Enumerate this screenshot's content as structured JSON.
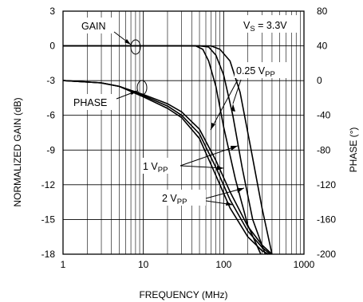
{
  "chart_data": {
    "type": "line",
    "x_axis": {
      "label": "FREQUENCY (MHz)",
      "scale": "log",
      "range": [
        1,
        1000
      ],
      "tick_labels": [
        "1",
        "10",
        "100",
        "1000"
      ]
    },
    "y_left_axis": {
      "label": "NORMALIZED GAIN (dB)",
      "range": [
        -18,
        3
      ],
      "tick_labels": [
        "3",
        "0",
        "-3",
        "-6",
        "-9",
        "-12",
        "-15",
        "-18"
      ]
    },
    "y_right_axis": {
      "label": "PHASE (°)",
      "range": [
        -200,
        80
      ],
      "tick_labels": [
        "80",
        "40",
        "0",
        "-40",
        "-80",
        "-120",
        "-160",
        "-200"
      ]
    },
    "grid": true,
    "annotations": {
      "condition_main": "V",
      "condition_sub": "S",
      "condition_rest": " = 3.3V",
      "gain_label": "GAIN",
      "phase_label": "PHASE",
      "vpp_025_main": "0.25 V",
      "vpp_1_main": "1 V",
      "vpp_2_main": "2 V",
      "vpp_sub": "PP"
    },
    "series": [
      {
        "axis": "left",
        "group": "gain",
        "amplitude": "0.25 VPP",
        "x": [
          1,
          10,
          50,
          70,
          90,
          120,
          160,
          220,
          300,
          400
        ],
        "y": [
          0,
          0,
          0,
          0,
          -0.3,
          -1.3,
          -4,
          -9,
          -14,
          -18
        ]
      },
      {
        "axis": "left",
        "group": "gain",
        "amplitude": "1 VPP",
        "x": [
          1,
          10,
          50,
          65,
          80,
          100,
          130,
          170,
          230,
          330
        ],
        "y": [
          0,
          0,
          0,
          -0.1,
          -0.8,
          -2.5,
          -6,
          -10.5,
          -15,
          -18
        ]
      },
      {
        "axis": "left",
        "group": "gain",
        "amplitude": "2 VPP",
        "x": [
          1,
          10,
          45,
          55,
          65,
          80,
          100,
          140,
          200,
          290
        ],
        "y": [
          0,
          0,
          0,
          -0.3,
          -1.3,
          -3.5,
          -7,
          -11.5,
          -15.5,
          -18
        ]
      },
      {
        "axis": "right",
        "group": "phase",
        "amplitude": "1 VPP",
        "x": [
          1,
          3,
          5,
          10,
          20,
          30,
          50,
          80,
          120,
          200,
          300,
          380
        ],
        "y": [
          -3,
          -3.2,
          -3.5,
          -4.3,
          -5.2,
          -6,
          -7.6,
          -10.5,
          -13.3,
          -16,
          -17.4,
          -18
        ]
      },
      {
        "axis": "right",
        "group": "phase",
        "amplitude": "2 VPP",
        "x": [
          1,
          3,
          5,
          10,
          20,
          30,
          50,
          80,
          120,
          200,
          300,
          360
        ],
        "y": [
          -3,
          -3.2,
          -3.5,
          -4.4,
          -5.4,
          -6.2,
          -8,
          -11.2,
          -14,
          -16.5,
          -17.7,
          -18
        ]
      },
      {
        "axis": "right",
        "group": "phase",
        "amplitude": "0.25 VPP",
        "x": [
          1,
          3,
          5,
          10,
          20,
          30,
          50,
          80,
          120,
          200,
          300,
          400
        ],
        "y": [
          -3,
          -3.2,
          -3.5,
          -4.2,
          -5.0,
          -5.7,
          -7.2,
          -9.9,
          -12.6,
          -15.6,
          -17.2,
          -18
        ]
      }
    ]
  }
}
